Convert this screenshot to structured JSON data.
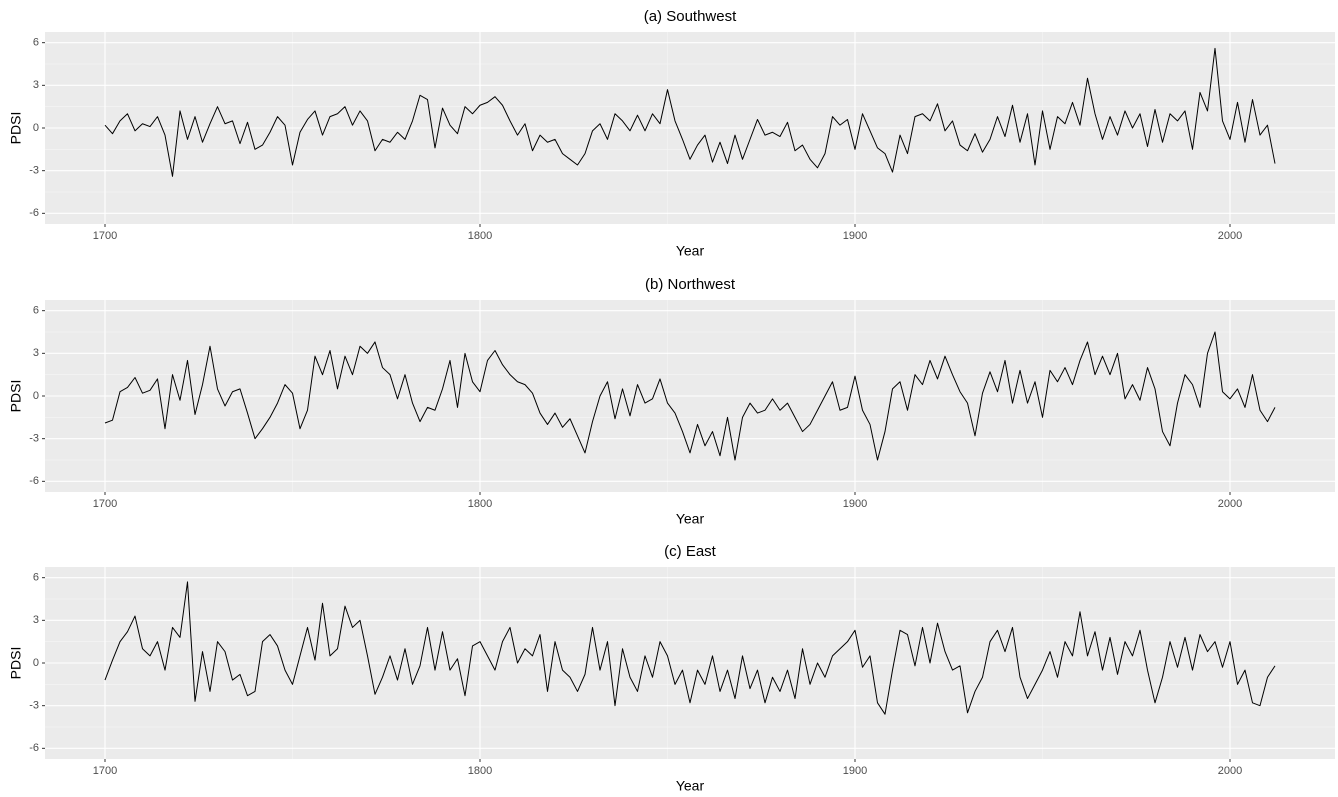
{
  "chart_data": [
    {
      "type": "line",
      "title": "(a) Southwest",
      "x_label": "Year",
      "y_label": "PDSI",
      "color": "#000000",
      "grid": true,
      "xlim": [
        1684,
        2028
      ],
      "ylim": [
        -6.75,
        6.75
      ],
      "xticks": [
        1700,
        1800,
        1900,
        2000
      ],
      "yticks": [
        -6,
        -3,
        0,
        3,
        6
      ],
      "x_minor_grid": [
        1750,
        1850,
        1950
      ],
      "y_minor_grid": [
        -4.5,
        -1.5,
        1.5,
        4.5
      ],
      "x": [
        1700,
        1702,
        1704,
        1706,
        1708,
        1710,
        1712,
        1714,
        1716,
        1718,
        1720,
        1722,
        1724,
        1726,
        1728,
        1730,
        1732,
        1734,
        1736,
        1738,
        1740,
        1742,
        1744,
        1746,
        1748,
        1750,
        1752,
        1754,
        1756,
        1758,
        1760,
        1762,
        1764,
        1766,
        1768,
        1770,
        1772,
        1774,
        1776,
        1778,
        1780,
        1782,
        1784,
        1786,
        1788,
        1790,
        1792,
        1794,
        1796,
        1798,
        1800,
        1802,
        1804,
        1806,
        1808,
        1810,
        1812,
        1814,
        1816,
        1818,
        1820,
        1822,
        1824,
        1826,
        1828,
        1830,
        1832,
        1834,
        1836,
        1838,
        1840,
        1842,
        1844,
        1846,
        1848,
        1850,
        1852,
        1854,
        1856,
        1858,
        1860,
        1862,
        1864,
        1866,
        1868,
        1870,
        1872,
        1874,
        1876,
        1878,
        1880,
        1882,
        1884,
        1886,
        1888,
        1890,
        1892,
        1894,
        1896,
        1898,
        1900,
        1902,
        1904,
        1906,
        1908,
        1910,
        1912,
        1914,
        1916,
        1918,
        1920,
        1922,
        1924,
        1926,
        1928,
        1930,
        1932,
        1934,
        1936,
        1938,
        1940,
        1942,
        1944,
        1946,
        1948,
        1950,
        1952,
        1954,
        1956,
        1958,
        1960,
        1962,
        1964,
        1966,
        1968,
        1970,
        1972,
        1974,
        1976,
        1978,
        1980,
        1982,
        1984,
        1986,
        1988,
        1990,
        1992,
        1994,
        1996,
        1998,
        2000,
        2002,
        2004,
        2006,
        2008,
        2010,
        2012
      ],
      "values": [
        0.2,
        -0.4,
        0.5,
        1.0,
        -0.2,
        0.3,
        0.1,
        0.8,
        -0.5,
        -3.4,
        1.2,
        -0.8,
        0.8,
        -1.0,
        0.3,
        1.5,
        0.3,
        0.5,
        -1.1,
        0.4,
        -1.5,
        -1.2,
        -0.3,
        0.8,
        0.2,
        -2.6,
        -0.3,
        0.6,
        1.2,
        -0.5,
        0.8,
        1.0,
        1.5,
        0.2,
        1.2,
        0.5,
        -1.6,
        -0.8,
        -1.0,
        -0.3,
        -0.8,
        0.5,
        2.3,
        2.0,
        -1.4,
        1.4,
        0.2,
        -0.4,
        1.5,
        1.0,
        1.6,
        1.8,
        2.2,
        1.6,
        0.5,
        -0.5,
        0.3,
        -1.6,
        -0.5,
        -1.0,
        -0.8,
        -1.8,
        -2.2,
        -2.6,
        -1.8,
        -0.2,
        0.3,
        -0.8,
        1.0,
        0.5,
        -0.2,
        0.9,
        -0.2,
        1.0,
        0.3,
        2.7,
        0.5,
        -0.8,
        -2.2,
        -1.2,
        -0.5,
        -2.4,
        -1.0,
        -2.5,
        -0.5,
        -2.2,
        -0.8,
        0.6,
        -0.5,
        -0.3,
        -0.6,
        0.4,
        -1.6,
        -1.2,
        -2.2,
        -2.8,
        -1.8,
        0.8,
        0.2,
        0.6,
        -1.5,
        1.0,
        -0.2,
        -1.4,
        -1.8,
        -3.1,
        -0.5,
        -1.8,
        0.8,
        1.0,
        0.5,
        1.7,
        -0.2,
        0.5,
        -1.2,
        -1.6,
        -0.4,
        -1.7,
        -0.8,
        0.8,
        -0.6,
        1.6,
        -1.0,
        1.0,
        -2.6,
        1.2,
        -1.5,
        0.8,
        0.3,
        1.8,
        0.2,
        3.5,
        1.0,
        -0.8,
        0.8,
        -0.5,
        1.2,
        0.0,
        1.0,
        -1.3,
        1.3,
        -1.0,
        1.0,
        0.5,
        1.2,
        -1.5,
        2.5,
        1.2,
        5.6,
        0.5,
        -0.8,
        1.8,
        -1.0,
        2.0,
        -0.5,
        0.2,
        -2.5
      ]
    },
    {
      "type": "line",
      "title": "(b) Northwest",
      "x_label": "Year",
      "y_label": "PDSI",
      "color": "#000000",
      "grid": true,
      "xlim": [
        1684,
        2028
      ],
      "ylim": [
        -6.75,
        6.75
      ],
      "xticks": [
        1700,
        1800,
        1900,
        2000
      ],
      "yticks": [
        -6,
        -3,
        0,
        3,
        6
      ],
      "x_minor_grid": [
        1750,
        1850,
        1950
      ],
      "y_minor_grid": [
        -4.5,
        -1.5,
        1.5,
        4.5
      ],
      "x": [
        1700,
        1702,
        1704,
        1706,
        1708,
        1710,
        1712,
        1714,
        1716,
        1718,
        1720,
        1722,
        1724,
        1726,
        1728,
        1730,
        1732,
        1734,
        1736,
        1738,
        1740,
        1742,
        1744,
        1746,
        1748,
        1750,
        1752,
        1754,
        1756,
        1758,
        1760,
        1762,
        1764,
        1766,
        1768,
        1770,
        1772,
        1774,
        1776,
        1778,
        1780,
        1782,
        1784,
        1786,
        1788,
        1790,
        1792,
        1794,
        1796,
        1798,
        1800,
        1802,
        1804,
        1806,
        1808,
        1810,
        1812,
        1814,
        1816,
        1818,
        1820,
        1822,
        1824,
        1826,
        1828,
        1830,
        1832,
        1834,
        1836,
        1838,
        1840,
        1842,
        1844,
        1846,
        1848,
        1850,
        1852,
        1854,
        1856,
        1858,
        1860,
        1862,
        1864,
        1866,
        1868,
        1870,
        1872,
        1874,
        1876,
        1878,
        1880,
        1882,
        1884,
        1886,
        1888,
        1890,
        1892,
        1894,
        1896,
        1898,
        1900,
        1902,
        1904,
        1906,
        1908,
        1910,
        1912,
        1914,
        1916,
        1918,
        1920,
        1922,
        1924,
        1926,
        1928,
        1930,
        1932,
        1934,
        1936,
        1938,
        1940,
        1942,
        1944,
        1946,
        1948,
        1950,
        1952,
        1954,
        1956,
        1958,
        1960,
        1962,
        1964,
        1966,
        1968,
        1970,
        1972,
        1974,
        1976,
        1978,
        1980,
        1982,
        1984,
        1986,
        1988,
        1990,
        1992,
        1994,
        1996,
        1998,
        2000,
        2002,
        2004,
        2006,
        2008,
        2010,
        2012
      ],
      "values": [
        -1.9,
        -1.7,
        0.3,
        0.6,
        1.3,
        0.2,
        0.4,
        1.2,
        -2.3,
        1.5,
        -0.3,
        2.5,
        -1.3,
        0.8,
        3.5,
        0.5,
        -0.7,
        0.3,
        0.5,
        -1.2,
        -3.0,
        -2.3,
        -1.5,
        -0.5,
        0.8,
        0.2,
        -2.3,
        -1.0,
        2.8,
        1.5,
        3.2,
        0.5,
        2.8,
        1.5,
        3.5,
        3.0,
        3.8,
        2.0,
        1.5,
        -0.2,
        1.5,
        -0.5,
        -1.8,
        -0.8,
        -1.0,
        0.5,
        2.5,
        -0.8,
        3.0,
        1.0,
        0.3,
        2.5,
        3.2,
        2.2,
        1.5,
        1.0,
        0.8,
        0.2,
        -1.2,
        -2.0,
        -1.2,
        -2.2,
        -1.6,
        -2.8,
        -4.0,
        -1.8,
        0.0,
        1.0,
        -1.6,
        0.5,
        -1.4,
        0.8,
        -0.5,
        -0.2,
        1.2,
        -0.5,
        -1.2,
        -2.5,
        -4.0,
        -2.0,
        -3.5,
        -2.5,
        -4.2,
        -1.5,
        -4.5,
        -1.5,
        -0.5,
        -1.2,
        -1.0,
        -0.2,
        -1.0,
        -0.5,
        -1.5,
        -2.5,
        -2.0,
        -1.0,
        0.0,
        1.0,
        -1.0,
        -0.8,
        1.4,
        -1.0,
        -2.0,
        -4.5,
        -2.5,
        0.5,
        1.0,
        -1.0,
        1.5,
        0.8,
        2.5,
        1.2,
        2.8,
        1.5,
        0.3,
        -0.5,
        -2.8,
        0.2,
        1.7,
        0.3,
        2.5,
        -0.5,
        1.8,
        -0.5,
        1.0,
        -1.5,
        1.8,
        1.0,
        2.0,
        0.8,
        2.5,
        3.8,
        1.5,
        2.8,
        1.5,
        3.0,
        -0.2,
        0.8,
        -0.3,
        2.0,
        0.5,
        -2.5,
        -3.5,
        -0.5,
        1.5,
        0.8,
        -0.8,
        3.0,
        4.5,
        0.3,
        -0.2,
        0.5,
        -0.8,
        1.5,
        -1.0,
        -1.8,
        -0.8
      ]
    },
    {
      "type": "line",
      "title": "(c) East",
      "x_label": "Year",
      "y_label": "PDSI",
      "color": "#000000",
      "grid": true,
      "xlim": [
        1684,
        2028
      ],
      "ylim": [
        -6.75,
        6.75
      ],
      "xticks": [
        1700,
        1800,
        1900,
        2000
      ],
      "yticks": [
        -6,
        -3,
        0,
        3,
        6
      ],
      "x_minor_grid": [
        1750,
        1850,
        1950
      ],
      "y_minor_grid": [
        -4.5,
        -1.5,
        1.5,
        4.5
      ],
      "x": [
        1700,
        1702,
        1704,
        1706,
        1708,
        1710,
        1712,
        1714,
        1716,
        1718,
        1720,
        1722,
        1724,
        1726,
        1728,
        1730,
        1732,
        1734,
        1736,
        1738,
        1740,
        1742,
        1744,
        1746,
        1748,
        1750,
        1752,
        1754,
        1756,
        1758,
        1760,
        1762,
        1764,
        1766,
        1768,
        1770,
        1772,
        1774,
        1776,
        1778,
        1780,
        1782,
        1784,
        1786,
        1788,
        1790,
        1792,
        1794,
        1796,
        1798,
        1800,
        1802,
        1804,
        1806,
        1808,
        1810,
        1812,
        1814,
        1816,
        1818,
        1820,
        1822,
        1824,
        1826,
        1828,
        1830,
        1832,
        1834,
        1836,
        1838,
        1840,
        1842,
        1844,
        1846,
        1848,
        1850,
        1852,
        1854,
        1856,
        1858,
        1860,
        1862,
        1864,
        1866,
        1868,
        1870,
        1872,
        1874,
        1876,
        1878,
        1880,
        1882,
        1884,
        1886,
        1888,
        1890,
        1892,
        1894,
        1896,
        1898,
        1900,
        1902,
        1904,
        1906,
        1908,
        1910,
        1912,
        1914,
        1916,
        1918,
        1920,
        1922,
        1924,
        1926,
        1928,
        1930,
        1932,
        1934,
        1936,
        1938,
        1940,
        1942,
        1944,
        1946,
        1948,
        1950,
        1952,
        1954,
        1956,
        1958,
        1960,
        1962,
        1964,
        1966,
        1968,
        1970,
        1972,
        1974,
        1976,
        1978,
        1980,
        1982,
        1984,
        1986,
        1988,
        1990,
        1992,
        1994,
        1996,
        1998,
        2000,
        2002,
        2004,
        2006,
        2008,
        2010,
        2012
      ],
      "values": [
        -1.2,
        0.2,
        1.5,
        2.2,
        3.3,
        1.0,
        0.5,
        1.5,
        -0.5,
        2.5,
        1.8,
        5.7,
        -2.7,
        0.8,
        -2.0,
        1.5,
        0.8,
        -1.2,
        -0.8,
        -2.3,
        -2.0,
        1.5,
        2.0,
        1.2,
        -0.5,
        -1.5,
        0.5,
        2.5,
        0.2,
        4.2,
        0.5,
        1.0,
        4.0,
        2.5,
        3.0,
        0.5,
        -2.2,
        -1.0,
        0.5,
        -1.2,
        1.0,
        -1.5,
        -0.2,
        2.5,
        -0.5,
        2.2,
        -0.5,
        0.3,
        -2.3,
        1.2,
        1.5,
        0.5,
        -0.5,
        1.5,
        2.5,
        0.0,
        1.0,
        0.5,
        2.0,
        -2.0,
        1.5,
        -0.5,
        -1.0,
        -2.0,
        -0.8,
        2.5,
        -0.5,
        1.5,
        -3.0,
        1.0,
        -1.0,
        -2.0,
        0.5,
        -1.0,
        1.5,
        0.5,
        -1.5,
        -0.5,
        -2.8,
        -0.5,
        -1.5,
        0.5,
        -2.0,
        -0.5,
        -2.5,
        0.5,
        -1.8,
        -0.5,
        -2.8,
        -1.0,
        -2.0,
        -0.5,
        -2.5,
        1.0,
        -1.5,
        0.0,
        -1.0,
        0.5,
        1.0,
        1.5,
        2.3,
        -0.3,
        0.5,
        -2.8,
        -3.6,
        -0.5,
        2.3,
        2.0,
        -0.2,
        2.5,
        0.0,
        2.8,
        0.8,
        -0.5,
        -0.2,
        -3.5,
        -2.0,
        -1.0,
        1.5,
        2.3,
        0.8,
        2.5,
        -1.0,
        -2.5,
        -1.5,
        -0.5,
        0.8,
        -1.0,
        1.5,
        0.5,
        3.6,
        0.5,
        2.2,
        -0.5,
        1.8,
        -0.8,
        1.5,
        0.5,
        2.3,
        -0.5,
        -2.8,
        -1.0,
        1.5,
        -0.3,
        1.8,
        -0.5,
        2.0,
        0.8,
        1.5,
        -0.3,
        1.5,
        -1.5,
        -0.5,
        -2.8,
        -3.0,
        -1.0,
        -0.2
      ]
    }
  ]
}
